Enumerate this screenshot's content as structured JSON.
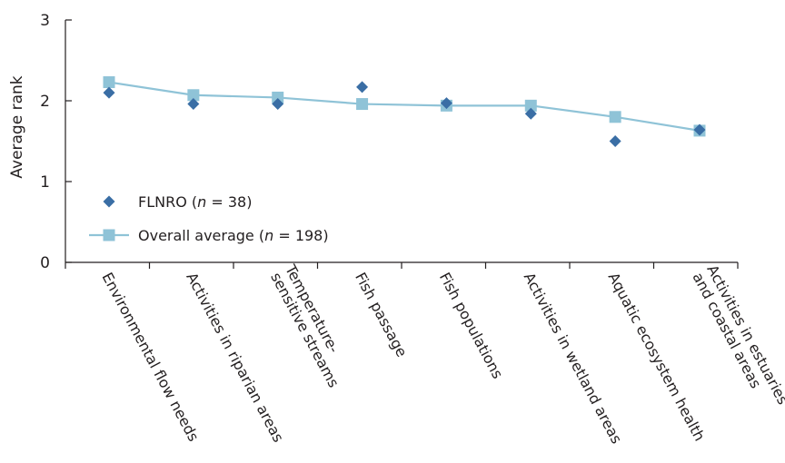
{
  "chart_data": {
    "type": "line",
    "ylabel": "Average rank",
    "ylim": [
      0,
      3
    ],
    "yticks": [
      0,
      1,
      2,
      3
    ],
    "categories": [
      [
        "Environmental flow needs"
      ],
      [
        "Activities in riparian areas"
      ],
      [
        "Temperature-",
        "sensitive streams"
      ],
      [
        "Fish passage"
      ],
      [
        "Fish populations"
      ],
      [
        "Activities in wetland areas"
      ],
      [
        "Aquatic ecosystem health"
      ],
      [
        "Activities in estuaries",
        "and coastal areas"
      ]
    ],
    "series": [
      {
        "name": "FLNRO",
        "legend_label": {
          "prefix": "FLNRO (",
          "n": "n",
          "suffix": " = 38)"
        },
        "marker": "diamond",
        "connected": false,
        "color": "#3a6ea5",
        "values": [
          2.1,
          1.96,
          1.96,
          2.17,
          1.97,
          1.84,
          1.5,
          1.64
        ]
      },
      {
        "name": "Overall average",
        "legend_label": {
          "prefix": "Overall average (",
          "n": "n",
          "suffix": " = 198)"
        },
        "marker": "square",
        "connected": true,
        "color": "#8fc3d7",
        "values": [
          2.23,
          2.07,
          2.04,
          1.96,
          1.94,
          1.94,
          1.8,
          1.63
        ]
      }
    ],
    "grid": false,
    "legend_position": "lower-left"
  }
}
